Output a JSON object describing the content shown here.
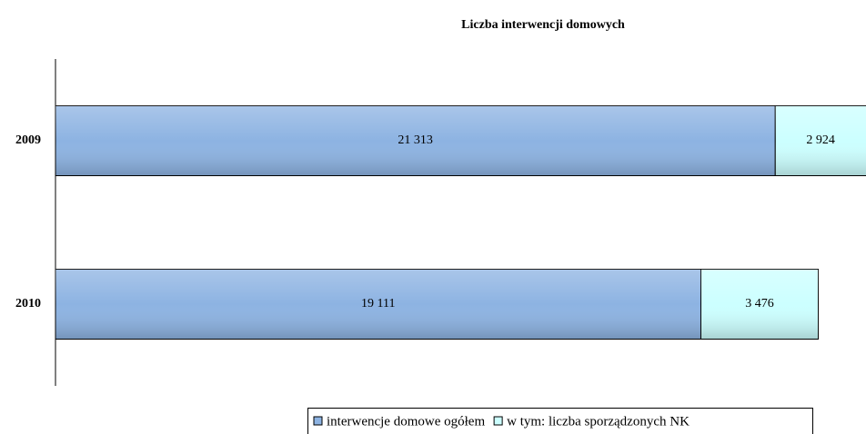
{
  "chart_data": {
    "type": "stacked-barh",
    "title": "Liczba interwencji domowych",
    "categories": [
      "2009",
      "2010"
    ],
    "series": [
      {
        "name": "interwencje domowe ogółem",
        "color": "#8db3e2",
        "values": [
          21313,
          19111
        ],
        "value_labels": [
          "21 313",
          "19 111"
        ]
      },
      {
        "name": "w tym: liczba sporządzonych NK",
        "color": "#ccffff",
        "values": [
          2924,
          3476
        ],
        "value_labels": [
          "2 924",
          "3 476"
        ]
      }
    ],
    "xlim": [
      0,
      24000
    ],
    "legend": "bottom"
  }
}
